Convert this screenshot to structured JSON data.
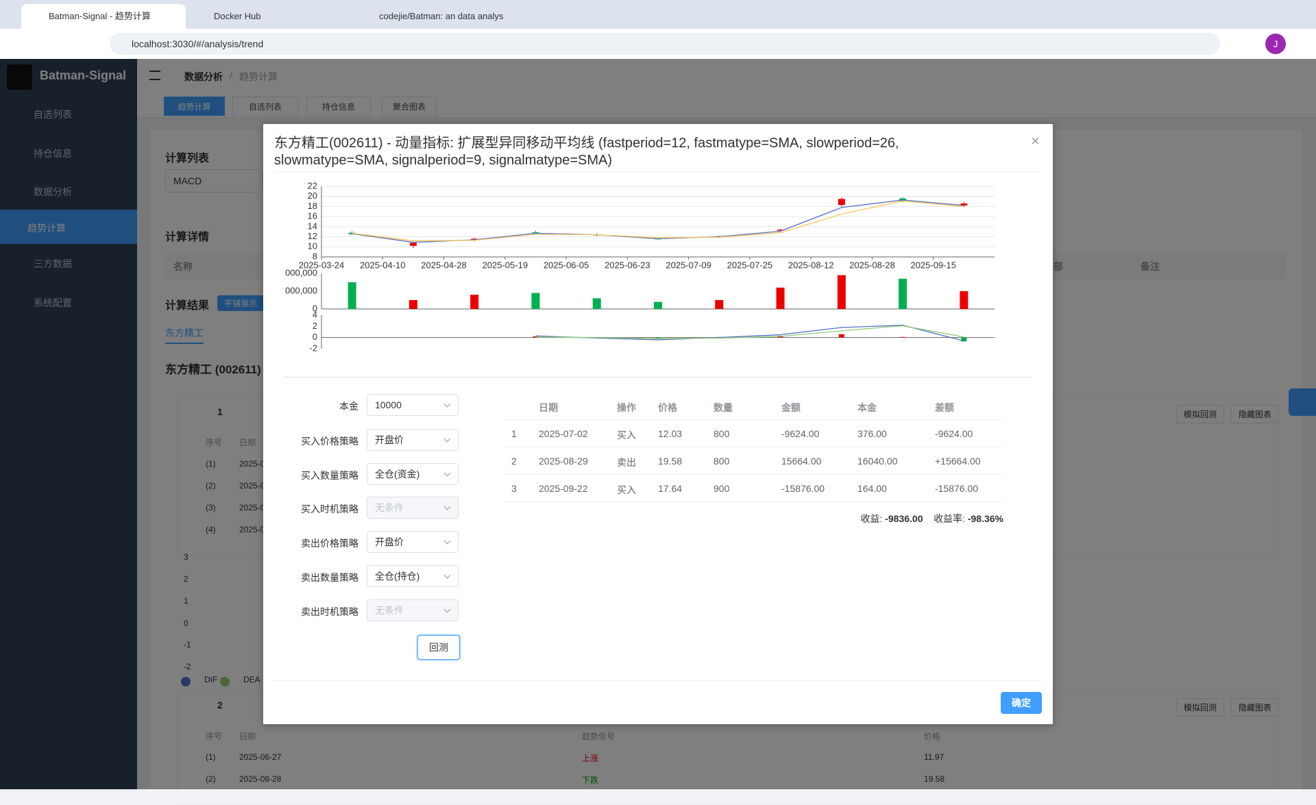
{
  "browser": {
    "tabs": [
      "Batman-Signal - 趋势计算",
      "Docker Hub",
      "codejie/Batman: an data analys"
    ],
    "url": "localhost:3030/#/analysis/trend",
    "avatar": "J"
  },
  "sidebar": {
    "brand": "Batman-Signal",
    "menu": [
      "自选列表",
      "持仓信息",
      "数据分析",
      "趋势计算",
      "三方数据",
      "系统配置"
    ]
  },
  "header": {
    "breadcrumb": [
      "数据分析",
      "/",
      "趋势计算"
    ],
    "tabs": [
      "趋势计算",
      "自选列表",
      "持仓信息",
      "聚合图表"
    ]
  },
  "background": {
    "calc_list_title": "计算列表",
    "calc_list_value": "MACD",
    "detail_title": "计算详情",
    "detail_headers": [
      "名称",
      "部",
      "备注"
    ],
    "result_title": "计算结果",
    "tile_button": "平铺展示",
    "stock_tab": "东方精工",
    "stock_heading": "东方精工 (002611)",
    "groups": [
      {
        "index": "1",
        "buttons": [
          "模拟回测",
          "隐藏图表"
        ],
        "headers": [
          "序号",
          "日期"
        ],
        "rows": [
          [
            "(1)",
            "2025-0"
          ],
          [
            "(2)",
            "2025-0"
          ],
          [
            "(3)",
            "2025-0"
          ],
          [
            "(4)",
            "2025-0"
          ]
        ]
      },
      {
        "index": "2",
        "buttons": [
          "模拟回测",
          "隐藏图表"
        ],
        "headers": [
          "序号",
          "日期",
          "趋势信号",
          "价格"
        ],
        "rows": [
          [
            "(1)",
            "2025-06-27",
            "上涨",
            "11.97"
          ],
          [
            "(2)",
            "2025-08-28",
            "下跌",
            "19.58"
          ]
        ]
      }
    ],
    "chart_ticks": [
      "3",
      "2",
      "1",
      "0",
      "-1",
      "-2"
    ],
    "legend": [
      "DIF",
      "DEA"
    ]
  },
  "modal": {
    "title": "东方精工(002611) - 动量指标: 扩展型异同移动平均线 (fastperiod=12, fastmatype=SMA, slowperiod=26, slowmatype=SMA, signalperiod=9, signalmatype=SMA)",
    "form": [
      {
        "label": "本金",
        "value": "10000"
      },
      {
        "label": "买入价格策略",
        "value": "开盘价"
      },
      {
        "label": "买入数量策略",
        "value": "全仓(资金)"
      },
      {
        "label": "买入时机策略",
        "value": "无条件",
        "disabled": true
      },
      {
        "label": "卖出价格策略",
        "value": "开盘价"
      },
      {
        "label": "卖出数量策略",
        "value": "全仓(持仓)"
      },
      {
        "label": "卖出时机策略",
        "value": "无条件",
        "disabled": true
      }
    ],
    "backtest_button": "回测",
    "trades": {
      "headers": [
        "日期",
        "操作",
        "价格",
        "数量",
        "金额",
        "本金",
        "差额"
      ],
      "rows": [
        [
          "1",
          "2025-07-02",
          "买入",
          "12.03",
          "800",
          "-9624.00",
          "376.00",
          "-9624.00"
        ],
        [
          "2",
          "2025-08-29",
          "卖出",
          "19.58",
          "800",
          "15664.00",
          "16040.00",
          "+15664.00"
        ],
        [
          "3",
          "2025-09-22",
          "买入",
          "17.64",
          "900",
          "-15876.00",
          "164.00",
          "-15876.00"
        ]
      ]
    },
    "summary": {
      "profit_label": "收益:",
      "profit": "-9836.00",
      "rate_label": "收益率:",
      "rate": "-98.36%"
    },
    "confirm": "确定"
  },
  "chart_data": [
    {
      "type": "candlestick",
      "categories": [
        "2025-03-24",
        "2025-04-10",
        "2025-04-28",
        "2025-05-19",
        "2025-06-05",
        "2025-06-23",
        "2025-07-09",
        "2025-07-25",
        "2025-08-12",
        "2025-08-28",
        "2025-09-15"
      ],
      "open": [
        12.8,
        10.2,
        11.3,
        12.9,
        12.4,
        11.7,
        11.9,
        13.2,
        18.3,
        19.6,
        18.2
      ],
      "high": [
        13.1,
        11.0,
        11.8,
        13.2,
        12.7,
        11.9,
        12.2,
        13.6,
        19.8,
        19.9,
        18.9
      ],
      "low": [
        12.3,
        9.8,
        11.1,
        12.6,
        12.1,
        11.3,
        11.8,
        13.0,
        18.0,
        18.8,
        17.9
      ],
      "close": [
        12.5,
        10.8,
        11.6,
        12.8,
        12.3,
        11.5,
        12.1,
        13.4,
        19.5,
        19.0,
        18.6
      ],
      "up_color": "#ec0000",
      "down_color": "#00b050",
      "series": [
        {
          "color": "#5470c6",
          "values": [
            12.6,
            10.9,
            11.4,
            12.7,
            12.4,
            11.6,
            12.0,
            13.1,
            17.8,
            19.3,
            18.2
          ]
        },
        {
          "color": "#fac858",
          "values": [
            12.7,
            11.2,
            11.3,
            12.5,
            12.4,
            11.8,
            11.9,
            12.8,
            16.5,
            19.1,
            18.0
          ]
        }
      ],
      "ylim": [
        8,
        22
      ],
      "yticks": [
        8,
        10,
        12,
        14,
        16,
        18,
        20,
        22
      ],
      "grid": true
    },
    {
      "type": "bar",
      "values": [
        15000000,
        5000000,
        8000000,
        9000000,
        6000000,
        4000000,
        5000000,
        12000000,
        19000000,
        17000000,
        10000000
      ],
      "ylim": [
        0,
        20000000
      ],
      "yticks": [
        0,
        {
          "value": 10000000,
          "label": "000,000"
        },
        {
          "value": 20000000,
          "label": "000,000"
        }
      ]
    },
    {
      "type": "line",
      "series": [
        {
          "color": "#5470c6",
          "values": [
            null,
            null,
            null,
            0.3,
            -0.1,
            -0.4,
            0.0,
            0.5,
            1.8,
            2.2,
            -0.6
          ]
        },
        {
          "color": "#91cc75",
          "values": [
            null,
            null,
            null,
            0.1,
            0.0,
            -0.2,
            -0.1,
            0.2,
            1.2,
            2.1,
            0.1
          ]
        }
      ],
      "histogram": [
        null,
        null,
        null,
        0.2,
        -0.1,
        -0.2,
        0.1,
        0.3,
        0.6,
        0.1,
        -0.7
      ],
      "ylim": [
        -2,
        4
      ],
      "yticks": [
        -2,
        0,
        2,
        4
      ]
    }
  ]
}
